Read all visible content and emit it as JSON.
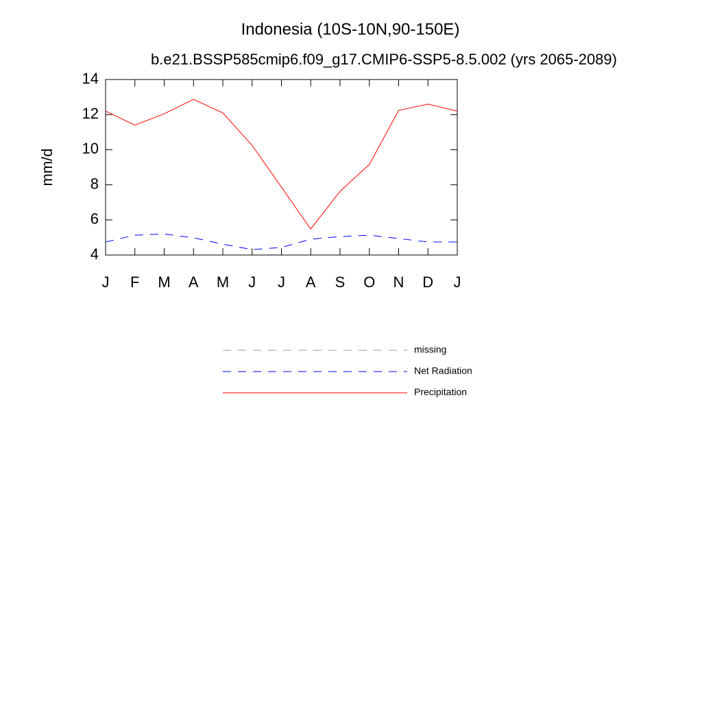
{
  "chart_data": {
    "type": "line",
    "title": "Indonesia (10S-10N,90-150E)",
    "subtitle": "b.e21.BSSP585cmip6.f09_g17.CMIP6-SSP5-8.5.002 (yrs 2065-2089)",
    "y_label": "mm/d",
    "categories": [
      "J",
      "F",
      "M",
      "A",
      "M",
      "J",
      "J",
      "A",
      "S",
      "O",
      "N",
      "D",
      "J"
    ],
    "series": [
      {
        "name": "missing",
        "color": "#999999",
        "line_style": "dashed",
        "values": [
          null,
          null,
          null,
          null,
          null,
          null,
          null,
          null,
          null,
          null,
          null,
          null,
          null
        ]
      },
      {
        "name": "Net Radiation",
        "color": "#0000ff",
        "line_style": "dashed",
        "values": [
          4.74,
          5.13,
          5.2,
          4.98,
          4.62,
          4.31,
          4.43,
          4.9,
          5.05,
          5.13,
          4.94,
          4.74,
          4.74
        ]
      },
      {
        "name": "Precipitation",
        "color": "#ff0000",
        "line_style": "solid",
        "values": [
          12.2,
          11.4,
          12.05,
          12.87,
          12.1,
          10.25,
          7.87,
          5.48,
          7.63,
          9.16,
          12.24,
          12.6,
          12.2
        ]
      }
    ],
    "ylim": [
      4,
      14
    ],
    "yticks": [
      4,
      6,
      8,
      10,
      12,
      14
    ],
    "grid": false
  }
}
